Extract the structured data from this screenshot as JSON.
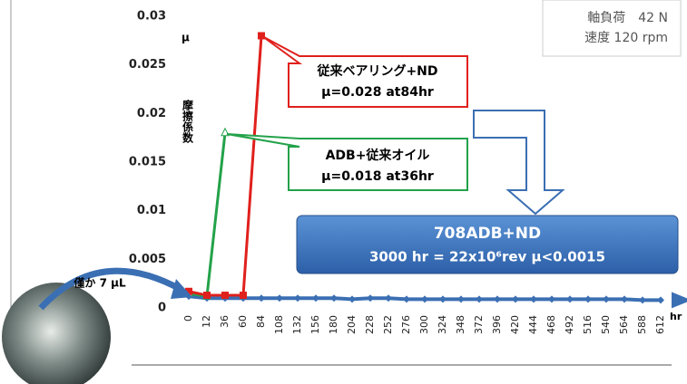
{
  "chart_data": {
    "type": "line",
    "y_label_symbol": "μ",
    "y_label": "摩擦係数",
    "x_label": "hr",
    "categories": [
      0,
      12,
      36,
      60,
      84,
      108,
      132,
      156,
      180,
      204,
      228,
      252,
      276,
      300,
      324,
      348,
      372,
      396,
      420,
      444,
      468,
      492,
      516,
      540,
      564,
      588,
      612
    ],
    "series": [
      {
        "color": "#e0201c",
        "marker": "square",
        "values": [
          0.0017,
          0.0013,
          0.0013,
          0.0013,
          0.028,
          null,
          null,
          null,
          null,
          null,
          null,
          null,
          null,
          null,
          null,
          null,
          null,
          null,
          null,
          null,
          null,
          null,
          null,
          null,
          null,
          null,
          null
        ]
      },
      {
        "color": "#23a24a",
        "marker": "triangle",
        "values": [
          0.0015,
          0.0012,
          0.018,
          null,
          null,
          null,
          null,
          null,
          null,
          null,
          null,
          null,
          null,
          null,
          null,
          null,
          null,
          null,
          null,
          null,
          null,
          null,
          null,
          null,
          null,
          null,
          null
        ]
      },
      {
        "color": "#3b6fb3",
        "marker": "diamond",
        "values": [
          0.0012,
          0.001,
          0.001,
          0.001,
          0.001,
          0.001,
          0.001,
          0.001,
          0.001,
          0.0009,
          0.001,
          0.001,
          0.0009,
          0.0009,
          0.0009,
          0.0009,
          0.0009,
          0.0009,
          0.0009,
          0.0009,
          0.0009,
          0.0009,
          0.0009,
          0.0009,
          0.0009,
          0.0008,
          0.0008
        ]
      }
    ],
    "ylim": [
      0,
      0.03
    ],
    "yticks": [
      0,
      0.005,
      0.01,
      0.015,
      0.02,
      0.025,
      0.03
    ],
    "annotations": {
      "load": "軸負荷　42 N",
      "speed": "速度 120 rpm",
      "red_name": "従来ベアリング+ND",
      "red_value": "μ=0.028 at84hr",
      "green_name": "ADB+従来オイル",
      "green_value": "μ=0.018 at36hr",
      "blue_name": "708ADB+ND",
      "blue_value": "3000 hr = 22x10⁶rev μ<0.0015",
      "oil": "僅か 7 μL"
    }
  }
}
